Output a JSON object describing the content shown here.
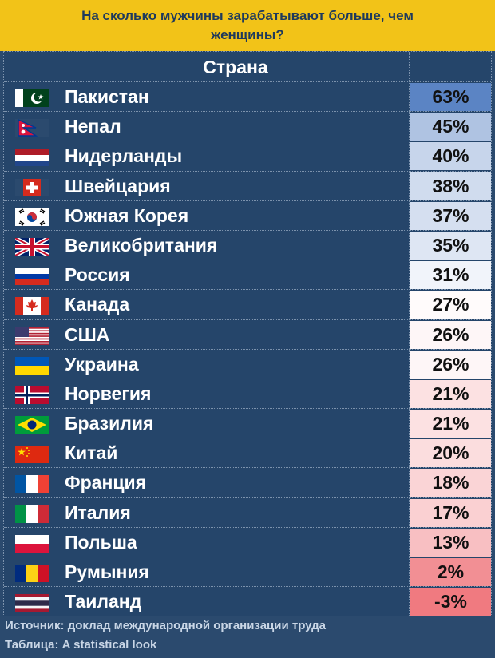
{
  "title": "На сколько мужчины зарабатывают больше, чем женщины?",
  "colors": {
    "background": "#2b4a6e",
    "title_band": "#f2c318",
    "title_text": "#1f3a5c",
    "high_value": "#5b84c4",
    "mid_value": "#ffffff",
    "low_value": "#f07a80"
  },
  "chart_data": {
    "type": "table",
    "column_header": "Страна",
    "rows": [
      {
        "country": "Пакистан",
        "value": "63%",
        "flag": "pakistan-flag-icon"
      },
      {
        "country": "Непал",
        "value": "45%",
        "flag": "nepal-flag-icon"
      },
      {
        "country": "Нидерланды",
        "value": "40%",
        "flag": "netherlands-flag-icon"
      },
      {
        "country": "Швейцария",
        "value": "38%",
        "flag": "switzerland-flag-icon"
      },
      {
        "country": "Южная Корея",
        "value": "37%",
        "flag": "south-korea-flag-icon"
      },
      {
        "country": "Великобритания",
        "value": "35%",
        "flag": "uk-flag-icon"
      },
      {
        "country": "Россия",
        "value": "31%",
        "flag": "russia-flag-icon"
      },
      {
        "country": "Канада",
        "value": "27%",
        "flag": "canada-flag-icon"
      },
      {
        "country": "США",
        "value": "26%",
        "flag": "usa-flag-icon"
      },
      {
        "country": "Украина",
        "value": "26%",
        "flag": "ukraine-flag-icon"
      },
      {
        "country": "Норвегия",
        "value": "21%",
        "flag": "norway-flag-icon"
      },
      {
        "country": "Бразилия",
        "value": "21%",
        "flag": "brazil-flag-icon"
      },
      {
        "country": "Китай",
        "value": "20%",
        "flag": "china-flag-icon"
      },
      {
        "country": "Франция",
        "value": "18%",
        "flag": "france-flag-icon"
      },
      {
        "country": "Италия",
        "value": "17%",
        "flag": "italy-flag-icon"
      },
      {
        "country": "Польша",
        "value": "13%",
        "flag": "poland-flag-icon"
      },
      {
        "country": "Румыния",
        "value": "2%",
        "flag": "romania-flag-icon"
      },
      {
        "country": "Таиланд",
        "value": "-3%",
        "flag": "thailand-flag-icon"
      }
    ]
  },
  "footer": {
    "source": "Источник: доклад международной организации труда",
    "table_credit": "Таблица: A statistical look"
  }
}
